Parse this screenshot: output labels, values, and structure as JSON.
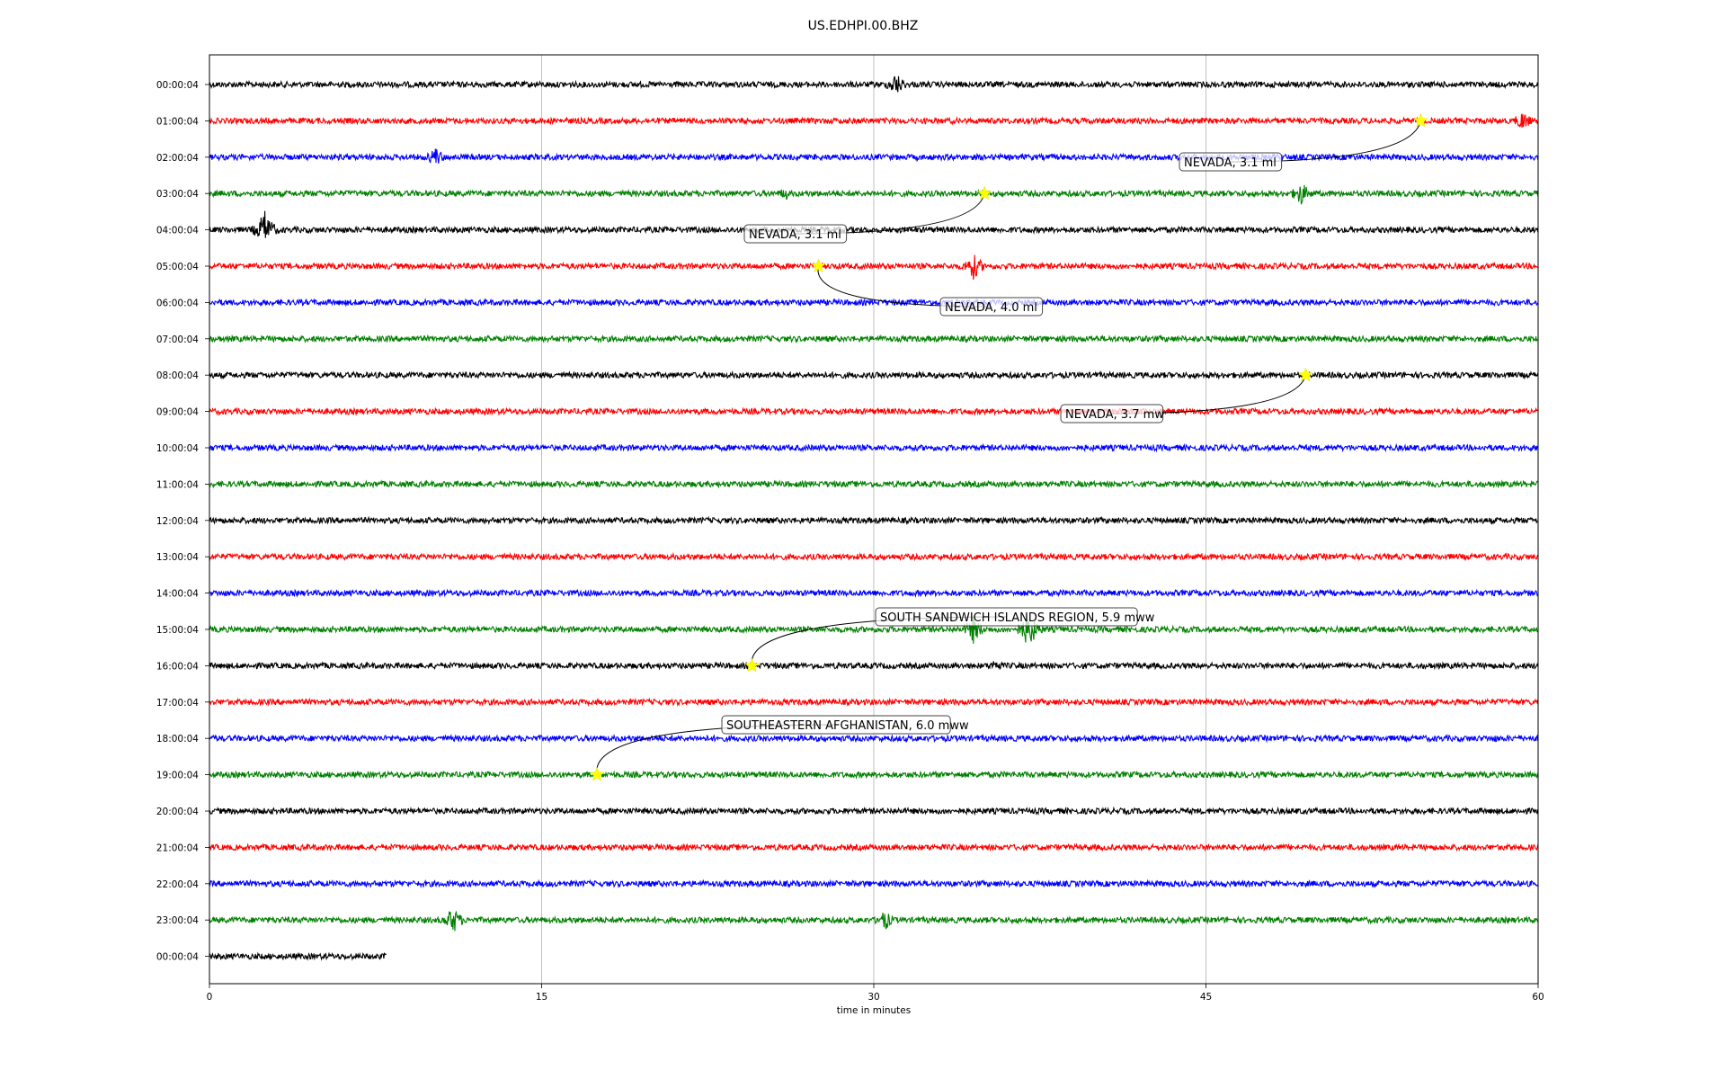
{
  "chart_data": {
    "type": "line",
    "title": "US.EDHPI.00.BHZ",
    "xlabel": "time in minutes",
    "ylabel": "",
    "xlim": [
      0,
      60
    ],
    "xticks": [
      0,
      15,
      30,
      45,
      60
    ],
    "grid": "vertical lines at x ticks",
    "row_colors": [
      "#000000",
      "#ff0000",
      "#0000ff",
      "#008000"
    ],
    "rows": [
      {
        "label": "00:00:04",
        "end": 60,
        "events": [
          {
            "x": 31.0,
            "amp": 14
          }
        ]
      },
      {
        "label": "01:00:04",
        "end": 60,
        "events": [
          {
            "x": 59.3,
            "amp": 12
          }
        ]
      },
      {
        "label": "02:00:04",
        "end": 60,
        "events": [
          {
            "x": 10.2,
            "amp": 12
          }
        ]
      },
      {
        "label": "03:00:04",
        "end": 60,
        "events": [
          {
            "x": 26.0,
            "amp": 8
          },
          {
            "x": 49.3,
            "amp": 14
          }
        ]
      },
      {
        "label": "04:00:04",
        "end": 60,
        "events": [
          {
            "x": 2.5,
            "amp": 22
          }
        ]
      },
      {
        "label": "05:00:04",
        "end": 60,
        "events": [
          {
            "x": 34.5,
            "amp": 16
          }
        ]
      },
      {
        "label": "06:00:04",
        "end": 60,
        "events": []
      },
      {
        "label": "07:00:04",
        "end": 60,
        "events": []
      },
      {
        "label": "08:00:04",
        "end": 60,
        "events": []
      },
      {
        "label": "09:00:04",
        "end": 60,
        "events": []
      },
      {
        "label": "10:00:04",
        "end": 60,
        "events": []
      },
      {
        "label": "11:00:04",
        "end": 60,
        "events": []
      },
      {
        "label": "12:00:04",
        "end": 60,
        "events": []
      },
      {
        "label": "13:00:04",
        "end": 60,
        "events": []
      },
      {
        "label": "14:00:04",
        "end": 60,
        "events": []
      },
      {
        "label": "15:00:04",
        "end": 60,
        "events": [
          {
            "x": 34.5,
            "amp": 16
          },
          {
            "x": 37.0,
            "amp": 22
          }
        ]
      },
      {
        "label": "16:00:04",
        "end": 60,
        "events": [
          {
            "x": 35.5,
            "amp": 8
          }
        ]
      },
      {
        "label": "17:00:04",
        "end": 60,
        "events": []
      },
      {
        "label": "18:00:04",
        "end": 60,
        "events": [
          {
            "x": 58.0,
            "amp": 5
          }
        ]
      },
      {
        "label": "19:00:04",
        "end": 60,
        "events": []
      },
      {
        "label": "20:00:04",
        "end": 60,
        "events": []
      },
      {
        "label": "21:00:04",
        "end": 60,
        "events": []
      },
      {
        "label": "22:00:04",
        "end": 60,
        "events": []
      },
      {
        "label": "23:00:04",
        "end": 60,
        "events": [
          {
            "x": 11.0,
            "amp": 16
          },
          {
            "x": 30.5,
            "amp": 12
          }
        ]
      },
      {
        "label": "00:00:04",
        "end": 8,
        "events": []
      }
    ],
    "annotations": [
      {
        "text": "NEVADA, 3.1 ml",
        "row": 1,
        "x": 54.7
      },
      {
        "text": "NEVADA, 3.1 ml",
        "row": 3,
        "x": 35.0
      },
      {
        "text": "NEVADA, 4.0 ml",
        "row": 5,
        "x": 27.5
      },
      {
        "text": "NEVADA, 3.7 mw",
        "row": 8,
        "x": 49.5
      },
      {
        "text": "SOUTH SANDWICH ISLANDS REGION, 5.9 mww",
        "row": 16,
        "x": 24.5
      },
      {
        "text": "SOUTHEASTERN AFGHANISTAN, 6.0 mww",
        "row": 19,
        "x": 17.5
      }
    ]
  }
}
